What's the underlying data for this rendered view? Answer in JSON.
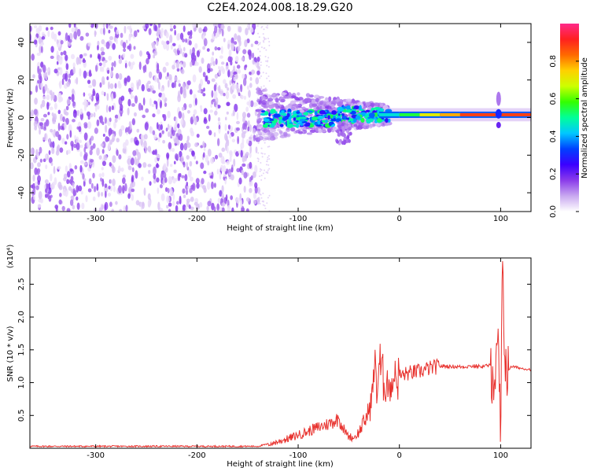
{
  "title": "C2E4.2024.008.18.29.G20",
  "colors": {
    "line": "#e8322e",
    "axis": "#000000",
    "colormap": [
      "#ffffff",
      "#c9a8f0",
      "#8a3bea",
      "#3b00ff",
      "#0040ff",
      "#00c8ff",
      "#00ff99",
      "#33ff00",
      "#ccff00",
      "#ffd000",
      "#ff6a00",
      "#ff2020",
      "#ff2a8a"
    ]
  },
  "chart_data": [
    {
      "type": "heatmap",
      "title": "C2E4.2024.008.18.29.G20",
      "xlabel": "Height of straight line (km)",
      "ylabel": "Frequency (Hz)",
      "xlim": [
        -365,
        130
      ],
      "ylim": [
        -50,
        50
      ],
      "x_ticks": [
        -300,
        -200,
        -100,
        0,
        100
      ],
      "y_ticks": [
        -40,
        -20,
        0,
        20,
        40
      ],
      "colorbar": {
        "label": "Normalized spectral amplitude",
        "range": [
          0,
          1
        ],
        "ticks": [
          0.0,
          0.2,
          0.4,
          0.6,
          0.8
        ]
      },
      "features": {
        "noise_region_x": [
          -365,
          -138
        ],
        "line_frequency_hz": 1.5,
        "spike_x": 98
      }
    },
    {
      "type": "line",
      "xlabel": "Height of straight line (km)",
      "ylabel": "SNR (10 * v/v)",
      "y_multiplier": "(x10⁴)",
      "xlim": [
        -365,
        130
      ],
      "ylim": [
        0,
        2.9
      ],
      "x_ticks": [
        -300,
        -200,
        -100,
        0,
        100
      ],
      "y_ticks": [
        0.5,
        1.0,
        1.5,
        2.0,
        2.5
      ],
      "series": [
        {
          "x": [
            -365,
            -300,
            -200,
            -140,
            -125,
            -115,
            -100,
            -90,
            -80,
            -70,
            -60,
            -52,
            -45,
            -40,
            -35,
            -30,
            -26,
            -24,
            -22,
            -20,
            -15,
            -10,
            -5,
            0,
            10,
            20,
            30,
            40,
            50,
            60,
            70,
            80,
            88,
            92,
            95,
            98,
            100,
            102,
            104,
            106,
            110,
            120,
            130
          ],
          "y": [
            0.03,
            0.03,
            0.03,
            0.03,
            0.08,
            0.12,
            0.2,
            0.26,
            0.32,
            0.37,
            0.45,
            0.2,
            0.15,
            0.25,
            0.4,
            0.55,
            0.85,
            1.5,
            0.8,
            1.3,
            1.0,
            1.05,
            1.02,
            1.1,
            1.15,
            1.17,
            1.22,
            1.25,
            1.25,
            1.24,
            1.25,
            1.25,
            1.26,
            1.25,
            0.9,
            1.55,
            0.1,
            2.85,
            1.4,
            1.1,
            1.25,
            1.22,
            1.2
          ]
        }
      ]
    }
  ]
}
